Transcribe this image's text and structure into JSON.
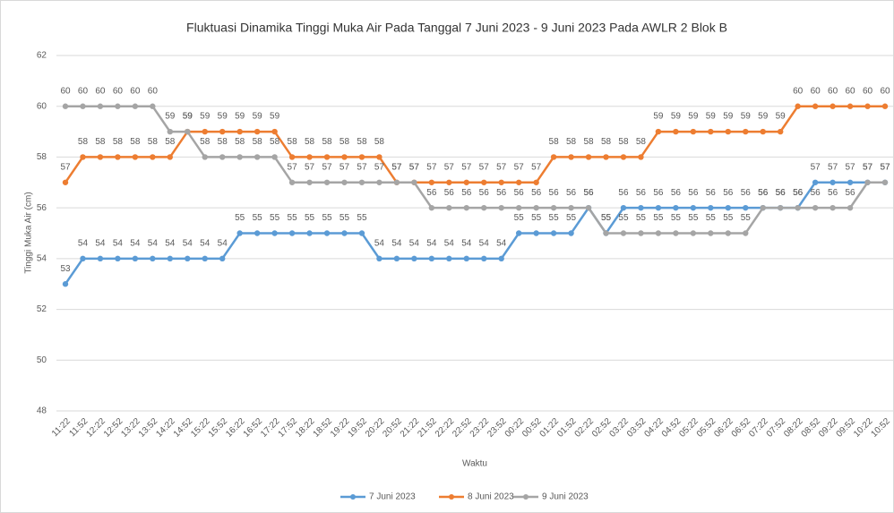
{
  "chart_data": {
    "type": "line",
    "title": "Fluktuasi Dinamika Tinggi Muka Air Pada Tanggal 7 Juni 2023 - 9 Juni 2023 Pada AWLR 2 Blok B",
    "x_label": "Waktu",
    "y_label": "Tinggi Muka Air (cm)",
    "categories": [
      "11:22",
      "11:52",
      "12:22",
      "12:52",
      "13:22",
      "13:52",
      "14:22",
      "14:52",
      "15:22",
      "15:52",
      "16:22",
      "16:52",
      "17:22",
      "17:52",
      "18:22",
      "18:52",
      "19:22",
      "19:52",
      "20:22",
      "20:52",
      "21:22",
      "21:52",
      "22:22",
      "22:52",
      "23:22",
      "23:52",
      "00:22",
      "00:52",
      "01:22",
      "01:52",
      "02:22",
      "02:52",
      "03:22",
      "03:52",
      "04:22",
      "04:52",
      "05:22",
      "05:52",
      "06:22",
      "06:52",
      "07:22",
      "07:52",
      "08:22",
      "08:52",
      "09:22",
      "09:52",
      "10:22",
      "10:52"
    ],
    "series": [
      {
        "name": "7 Juni 2023",
        "color": "#5b9bd5",
        "values": [
          53,
          54,
          54,
          54,
          54,
          54,
          54,
          54,
          54,
          54,
          55,
          55,
          55,
          55,
          55,
          55,
          55,
          55,
          54,
          54,
          54,
          54,
          54,
          54,
          54,
          54,
          55,
          55,
          55,
          55,
          56,
          55,
          56,
          56,
          56,
          56,
          56,
          56,
          56,
          56,
          56,
          56,
          56,
          57,
          57,
          57,
          57,
          57
        ]
      },
      {
        "name": "8 Juni 2023",
        "color": "#ed7d31",
        "values": [
          57,
          58,
          58,
          58,
          58,
          58,
          58,
          59,
          59,
          59,
          59,
          59,
          59,
          58,
          58,
          58,
          58,
          58,
          58,
          57,
          57,
          57,
          57,
          57,
          57,
          57,
          57,
          57,
          58,
          58,
          58,
          58,
          58,
          58,
          59,
          59,
          59,
          59,
          59,
          59,
          59,
          59,
          60,
          60,
          60,
          60,
          60,
          60
        ]
      },
      {
        "name": "9 Juni 2023",
        "color": "#a5a5a5",
        "values": [
          60,
          60,
          60,
          60,
          60,
          60,
          59,
          59,
          58,
          58,
          58,
          58,
          58,
          57,
          57,
          57,
          57,
          57,
          57,
          57,
          57,
          56,
          56,
          56,
          56,
          56,
          56,
          56,
          56,
          56,
          56,
          55,
          55,
          55,
          55,
          55,
          55,
          55,
          55,
          55,
          56,
          56,
          56,
          56,
          56,
          56,
          57,
          57
        ]
      }
    ],
    "ylim": [
      48,
      62
    ],
    "yticks": [
      48,
      50,
      52,
      54,
      56,
      58,
      60,
      62
    ],
    "grid": true,
    "legend": "bottom"
  }
}
